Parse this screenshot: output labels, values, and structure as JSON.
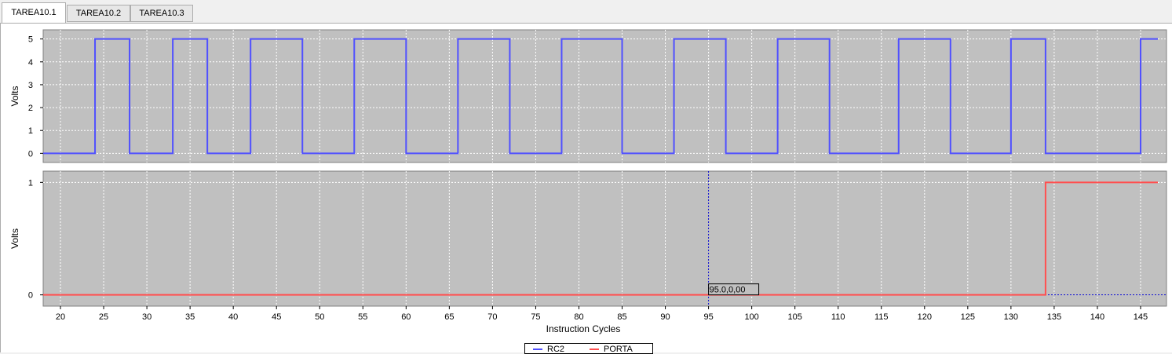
{
  "tabs": [
    {
      "label": "TAREA10.1",
      "active": true
    },
    {
      "label": "TAREA10.2",
      "active": false
    },
    {
      "label": "TAREA10.3",
      "active": false
    }
  ],
  "colors": {
    "plot_bg": "#c0c0c0",
    "grid": "#ffffff",
    "trace_top": "#5050ff",
    "trace_bottom": "#ff5050",
    "cursor": "#0000cc"
  },
  "cursor": {
    "x": 95,
    "label": "95.0,0,00"
  },
  "chart_data": [
    {
      "type": "line",
      "ylabel": "Volts",
      "xlabel": "",
      "xlim": [
        18,
        148
      ],
      "ylim": [
        -0.4,
        5.4
      ],
      "yticks": [
        "0",
        "1",
        "2",
        "3",
        "4",
        "5"
      ],
      "grid": true,
      "series": [
        {
          "name": "RC2",
          "step": true,
          "x": [
            18,
            24,
            28,
            33,
            37,
            42,
            48,
            54,
            60,
            66,
            72,
            78,
            85,
            91,
            97,
            103,
            109,
            117,
            123,
            130,
            134,
            145,
            147
          ],
          "values": [
            0,
            5,
            0,
            5,
            0,
            5,
            0,
            5,
            0,
            5,
            0,
            5,
            0,
            5,
            0,
            5,
            0,
            5,
            0,
            5,
            0,
            5,
            5
          ]
        }
      ]
    },
    {
      "type": "line",
      "ylabel": "Volts",
      "xlabel": "Instruction Cycles",
      "xlim": [
        18,
        148
      ],
      "ylim": [
        -0.1,
        1.1
      ],
      "yticks": [
        "0",
        "1"
      ],
      "xticks": [
        "20",
        "25",
        "30",
        "35",
        "40",
        "45",
        "50",
        "55",
        "60",
        "65",
        "70",
        "75",
        "80",
        "85",
        "90",
        "95",
        "100",
        "105",
        "110",
        "115",
        "120",
        "125",
        "130",
        "135",
        "140",
        "145"
      ],
      "grid": true,
      "series": [
        {
          "name": "PORTA",
          "step": true,
          "x": [
            18,
            134,
            147
          ],
          "values": [
            0,
            1,
            1
          ]
        }
      ]
    }
  ],
  "legend": {
    "entries": [
      {
        "label": "RC2",
        "color": "#5050ff"
      },
      {
        "label": "PORTA",
        "color": "#ff5050"
      }
    ]
  }
}
